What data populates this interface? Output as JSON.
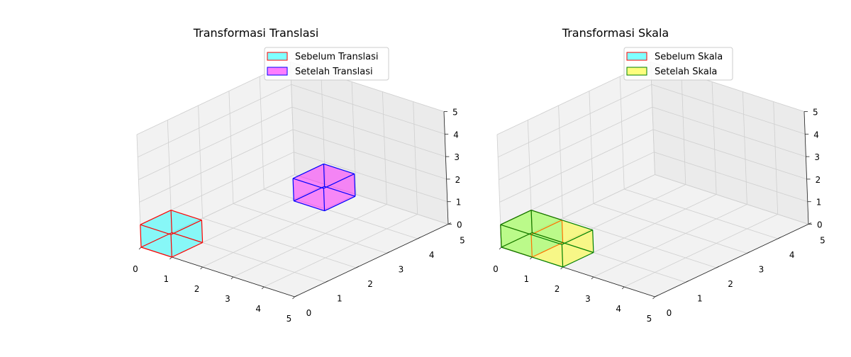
{
  "chart_data": [
    {
      "type": "3d-bar",
      "title": "Transformasi Translasi",
      "xlim": [
        0,
        5
      ],
      "ylim": [
        0,
        5
      ],
      "zlim": [
        0,
        5
      ],
      "xticks": [
        "0",
        "1",
        "2",
        "3",
        "4",
        "5"
      ],
      "yticks": [
        "0",
        "1",
        "2",
        "3",
        "4",
        "5"
      ],
      "zticks": [
        "0",
        "1",
        "2",
        "3",
        "4",
        "5"
      ],
      "grid": true,
      "legend_position": "top-right",
      "series": [
        {
          "name": "Sebelum Translasi",
          "origin": [
            0,
            0,
            0
          ],
          "size": [
            1,
            1,
            1
          ],
          "face_color": "#00ffff",
          "edge_color": "#ff0000"
        },
        {
          "name": "Setelah Translasi",
          "origin": [
            2,
            3,
            1
          ],
          "size": [
            1,
            1,
            1
          ],
          "face_color": "#ff00ff",
          "edge_color": "#0000ff"
        }
      ]
    },
    {
      "type": "3d-bar",
      "title": "Transformasi Skala",
      "xlim": [
        0,
        5
      ],
      "ylim": [
        0,
        5
      ],
      "zlim": [
        0,
        5
      ],
      "xticks": [
        "0",
        "1",
        "2",
        "3",
        "4",
        "5"
      ],
      "yticks": [
        "0",
        "1",
        "2",
        "3",
        "4",
        "5"
      ],
      "zticks": [
        "0",
        "1",
        "2",
        "3",
        "4",
        "5"
      ],
      "grid": true,
      "legend_position": "top-right",
      "series": [
        {
          "name": "Sebelum Skala",
          "origin": [
            0,
            0,
            0
          ],
          "size": [
            1,
            1,
            1
          ],
          "face_color": "#00ffff",
          "edge_color": "#ff0000"
        },
        {
          "name": "Setelah Skala",
          "origin": [
            0,
            0,
            0
          ],
          "size": [
            2,
            1,
            1
          ],
          "face_color": "#ffff00",
          "edge_color": "#008000"
        }
      ]
    }
  ]
}
